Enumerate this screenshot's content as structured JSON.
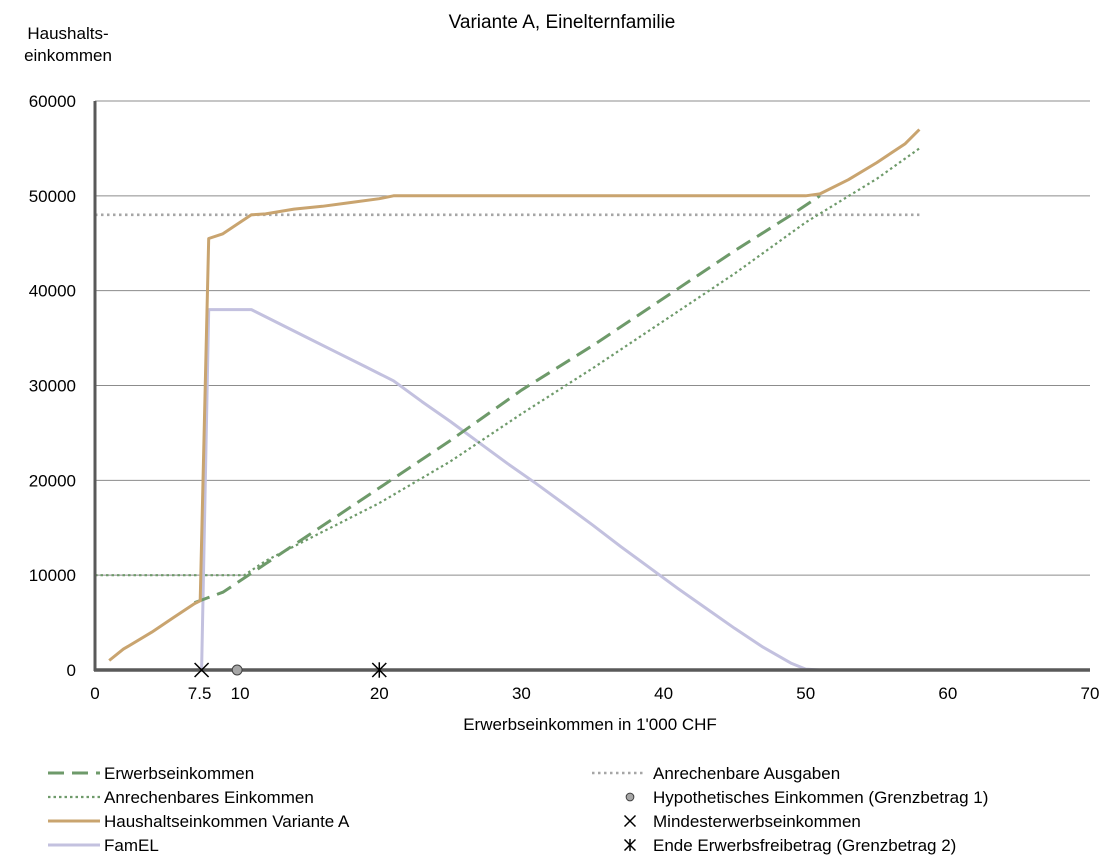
{
  "chart_data": {
    "type": "line",
    "title": "Variante A, Einelternfamilie",
    "ylabel_line1": "Haushalts-",
    "ylabel_line2": "einkommen",
    "xlabel": "Erwerbseinkommen in 1'000 CHF",
    "xlim": [
      0,
      70
    ],
    "ylim": [
      0,
      60000
    ],
    "x_ticks": [
      {
        "value": 0,
        "label": "0"
      },
      {
        "value": 7.5,
        "label": "7.5"
      },
      {
        "value": 10,
        "label": "10"
      },
      {
        "value": 20,
        "label": "20"
      },
      {
        "value": 30,
        "label": "30"
      },
      {
        "value": 40,
        "label": "40"
      },
      {
        "value": 50,
        "label": "50"
      },
      {
        "value": 60,
        "label": "60"
      },
      {
        "value": 70,
        "label": "70"
      }
    ],
    "y_ticks": [
      {
        "value": 0,
        "label": "0"
      },
      {
        "value": 10000,
        "label": "10000"
      },
      {
        "value": 20000,
        "label": "20000"
      },
      {
        "value": 30000,
        "label": "30000"
      },
      {
        "value": 40000,
        "label": "40000"
      },
      {
        "value": 50000,
        "label": "50000"
      },
      {
        "value": 60000,
        "label": "60000"
      }
    ],
    "grid": "horizontal",
    "legend_position": "bottom",
    "series": [
      {
        "name": "Erwerbseinkommen",
        "style": "dashed",
        "color": "#6e9a6a",
        "points": [
          [
            7,
            7100
          ],
          [
            9,
            8200
          ],
          [
            10,
            9200
          ],
          [
            12,
            11200
          ],
          [
            16,
            15200
          ],
          [
            20,
            19200
          ],
          [
            25,
            24200
          ],
          [
            30,
            29500
          ],
          [
            35,
            34200
          ],
          [
            40,
            39200
          ],
          [
            45,
            44200
          ],
          [
            49,
            48000
          ],
          [
            51,
            50000
          ]
        ]
      },
      {
        "name": "Anrechenbares Einkommen",
        "style": "dotted",
        "color": "#6e9a6a",
        "points": [
          [
            0,
            10000
          ],
          [
            10.5,
            10000
          ],
          [
            12,
            11500
          ],
          [
            15,
            13800
          ],
          [
            20,
            17600
          ],
          [
            25,
            22000
          ],
          [
            30,
            27000
          ],
          [
            35,
            31800
          ],
          [
            40,
            36800
          ],
          [
            45,
            41800
          ],
          [
            50,
            47200
          ],
          [
            55,
            51800
          ],
          [
            58,
            55000
          ]
        ]
      },
      {
        "name": "Haushaltseinkommen Variante A",
        "style": "solid",
        "color": "#c9a46f",
        "points": [
          [
            1,
            1000
          ],
          [
            2,
            2200
          ],
          [
            4,
            4000
          ],
          [
            5.5,
            5500
          ],
          [
            7,
            7000
          ],
          [
            7.4,
            7300
          ],
          [
            8,
            45500
          ],
          [
            9,
            46000
          ],
          [
            10,
            47000
          ],
          [
            11,
            48000
          ],
          [
            12,
            48100
          ],
          [
            14,
            48600
          ],
          [
            16,
            48900
          ],
          [
            18,
            49300
          ],
          [
            20,
            49700
          ],
          [
            21,
            50000
          ],
          [
            22,
            50000
          ],
          [
            30,
            50000
          ],
          [
            40,
            50000
          ],
          [
            45,
            50000
          ],
          [
            50,
            50000
          ],
          [
            51,
            50200
          ],
          [
            53,
            51700
          ],
          [
            55,
            53500
          ],
          [
            57,
            55500
          ],
          [
            58,
            57000
          ]
        ]
      },
      {
        "name": "FamEL",
        "style": "solid",
        "color": "#c3c1df",
        "points": [
          [
            1,
            0
          ],
          [
            7.3,
            0
          ],
          [
            7.5,
            0
          ],
          [
            8,
            38000
          ],
          [
            9,
            38000
          ],
          [
            11,
            38000
          ],
          [
            13,
            36500
          ],
          [
            15,
            35000
          ],
          [
            17,
            33500
          ],
          [
            19,
            32000
          ],
          [
            21,
            30500
          ],
          [
            23,
            28300
          ],
          [
            25,
            26200
          ],
          [
            27,
            24000
          ],
          [
            29,
            21800
          ],
          [
            31,
            19700
          ],
          [
            33,
            17500
          ],
          [
            35,
            15300
          ],
          [
            37,
            13000
          ],
          [
            39,
            10800
          ],
          [
            41,
            8600
          ],
          [
            43,
            6500
          ],
          [
            45,
            4400
          ],
          [
            47,
            2400
          ],
          [
            49,
            700
          ],
          [
            50,
            100
          ],
          [
            51,
            0
          ],
          [
            58,
            0
          ]
        ]
      },
      {
        "name": "Anrechenbare Ausgaben",
        "style": "dotted-grey",
        "color": "#a6a6a6",
        "points": [
          [
            0,
            48000
          ],
          [
            58,
            48000
          ]
        ]
      }
    ],
    "markers": [
      {
        "name": "Hypothetisches Einkommen (Grenzbetrag 1)",
        "shape": "circle",
        "x": 10,
        "y": 0
      },
      {
        "name": "Mindesterwerbseinkommen",
        "shape": "x",
        "x": 7.5,
        "y": 0
      },
      {
        "name": "Ende Erwerbsfreibetrag (Grenzbetrag 2)",
        "shape": "asterisk",
        "x": 20,
        "y": 0
      }
    ],
    "legend": [
      {
        "label": "Erwerbseinkommen",
        "kind": "dashed"
      },
      {
        "label": "Anrechenbare Ausgaben",
        "kind": "dotted-grey"
      },
      {
        "label": "Anrechenbares Einkommen",
        "kind": "dotted"
      },
      {
        "label": "Hypothetisches Einkommen (Grenzbetrag 1)",
        "kind": "circle"
      },
      {
        "label": "Haushaltseinkommen Variante A",
        "kind": "solid-tan"
      },
      {
        "label": "Mindesterwerbseinkommen",
        "kind": "x"
      },
      {
        "label": "FamEL",
        "kind": "solid-lav"
      },
      {
        "label": "Ende Erwerbsfreibetrag (Grenzbetrag 2)",
        "kind": "asterisk"
      }
    ]
  }
}
